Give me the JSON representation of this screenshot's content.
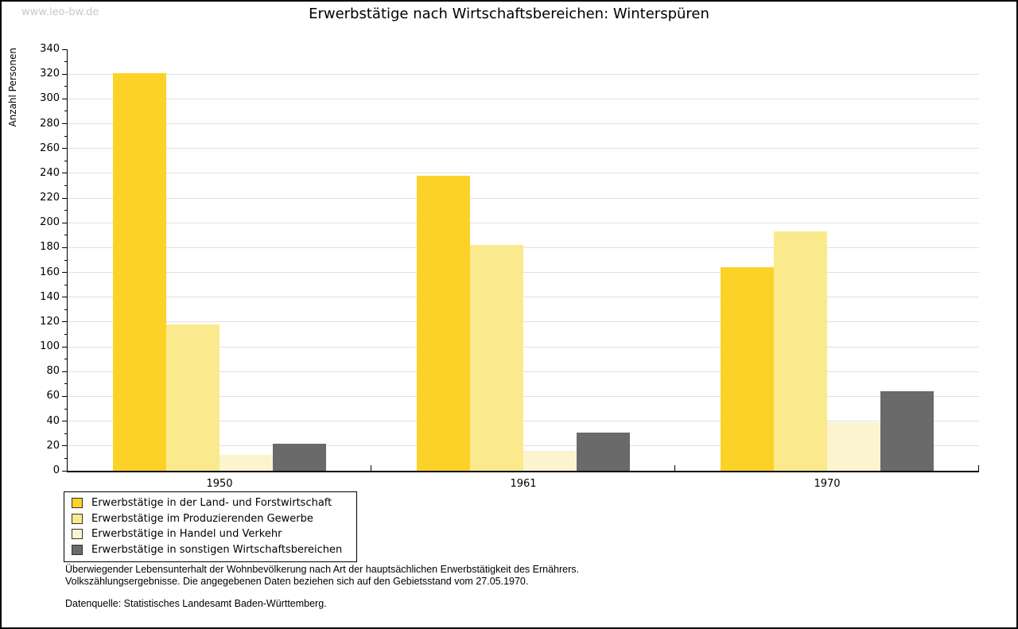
{
  "watermark": "www.leo-bw.de",
  "footnotes": [
    "Überwiegender Lebensunterhalt der Wohnbevölkerung nach Art der hauptsächlichen Erwerbstätigkeit des Ernährers.",
    "Volkszählungsergebnisse. Die angegebenen Daten beziehen sich auf den Gebietsstand vom 27.05.1970."
  ],
  "source": "Datenquelle: Statistisches Landesamt Baden-Württemberg.",
  "chart_data": {
    "type": "bar",
    "title": "Erwerbstätige nach Wirtschaftsbereichen: Winterspüren",
    "xlabel": "",
    "ylabel": "Anzahl Personen",
    "categories": [
      "1950",
      "1961",
      "1970"
    ],
    "series": [
      {
        "name": "Erwerbstätige in der Land- und Forstwirtschaft",
        "color": "#fcd228",
        "values": [
          321,
          238,
          164
        ]
      },
      {
        "name": "Erwerbstätige im Produzierenden Gewerbe",
        "color": "#fbe98d",
        "values": [
          118,
          182,
          193
        ]
      },
      {
        "name": "Erwerbstätige in Handel und Verkehr",
        "color": "#fcf4cf",
        "values": [
          13,
          16,
          39
        ]
      },
      {
        "name": "Erwerbstätige in sonstigen Wirtschaftsbereichen",
        "color": "#6a6a6a",
        "values": [
          22,
          31,
          64
        ]
      }
    ],
    "ylim": [
      0,
      340
    ],
    "ytick_step": 20,
    "ytick_minor_step": 10,
    "grid": true,
    "grid_color": "#e0e0e0",
    "legend_position": "bottom-left"
  }
}
